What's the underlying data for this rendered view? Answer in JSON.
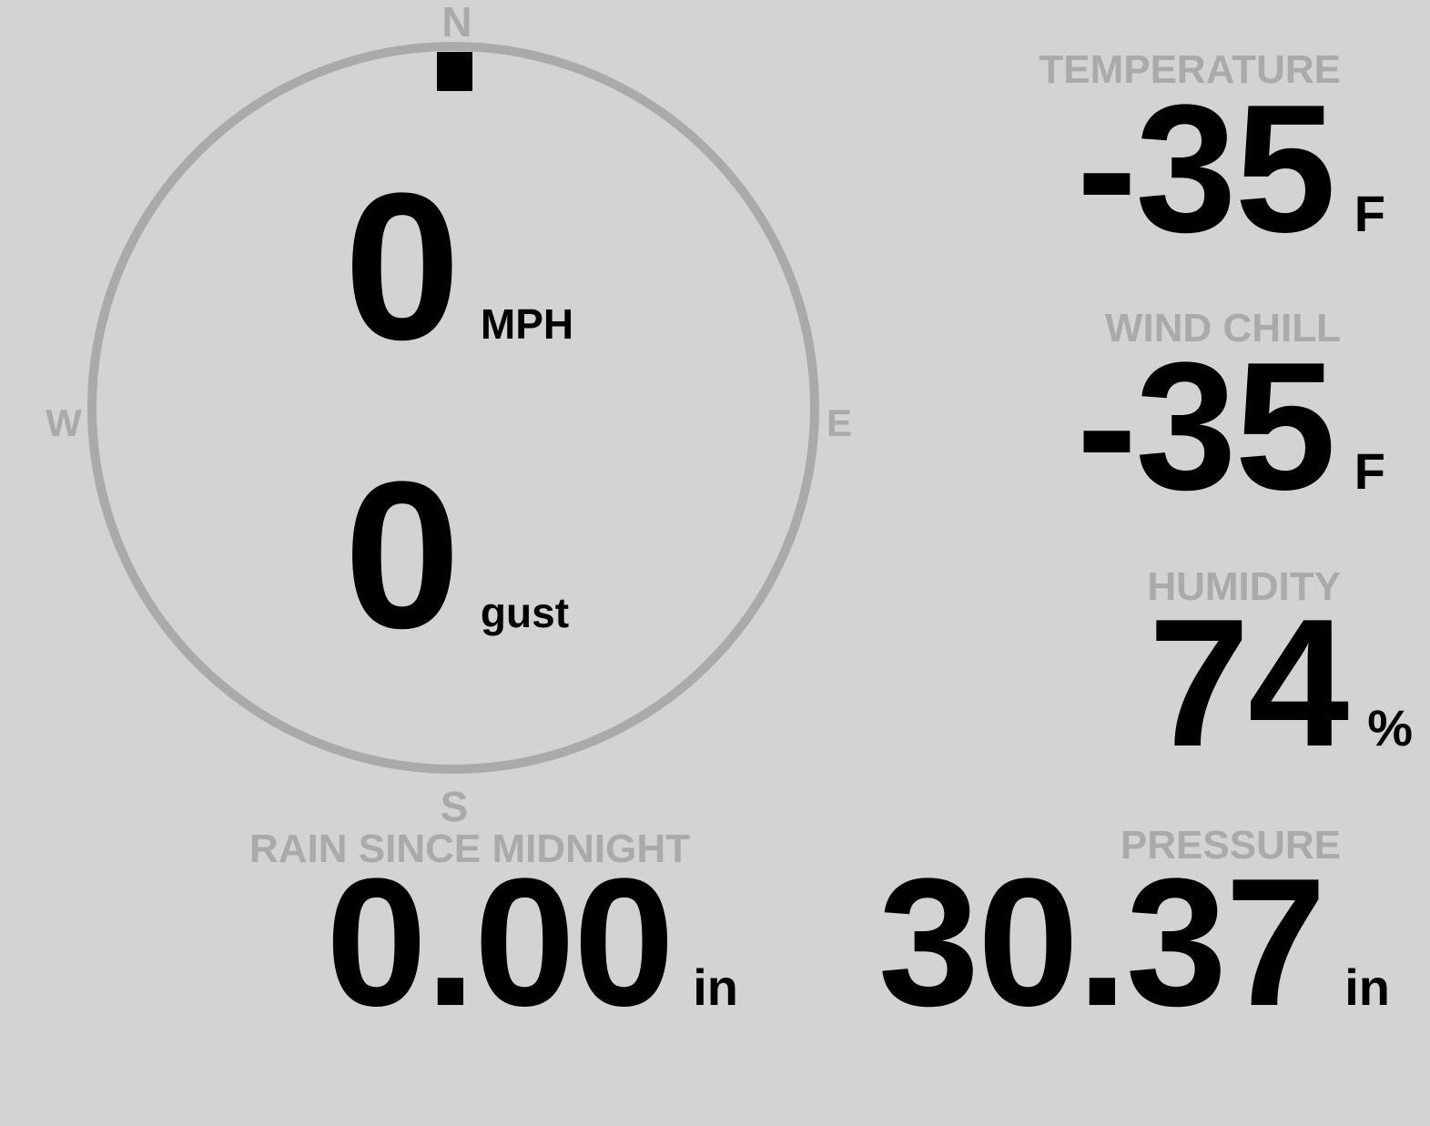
{
  "colors": {
    "background": "#d3d3d3",
    "label": "#aaaaaa",
    "value": "#000000",
    "ring": "#aaaaaa"
  },
  "wind": {
    "direction_degrees": 0,
    "compass": {
      "n": "N",
      "s": "S",
      "e": "E",
      "w": "W"
    },
    "speed": "0",
    "speed_unit": "MPH",
    "gust": "0",
    "gust_unit": "gust"
  },
  "temperature": {
    "label": "TEMPERATURE",
    "value": "-35",
    "unit": "F"
  },
  "wind_chill": {
    "label": "WIND CHILL",
    "value": "-35",
    "unit": "F"
  },
  "humidity": {
    "label": "HUMIDITY",
    "value": "74",
    "unit": "%"
  },
  "pressure": {
    "label": "PRESSURE",
    "value": "30.37",
    "unit": "in"
  },
  "rain": {
    "label": "RAIN SINCE MIDNIGHT",
    "value": "0.00",
    "unit": "in"
  }
}
